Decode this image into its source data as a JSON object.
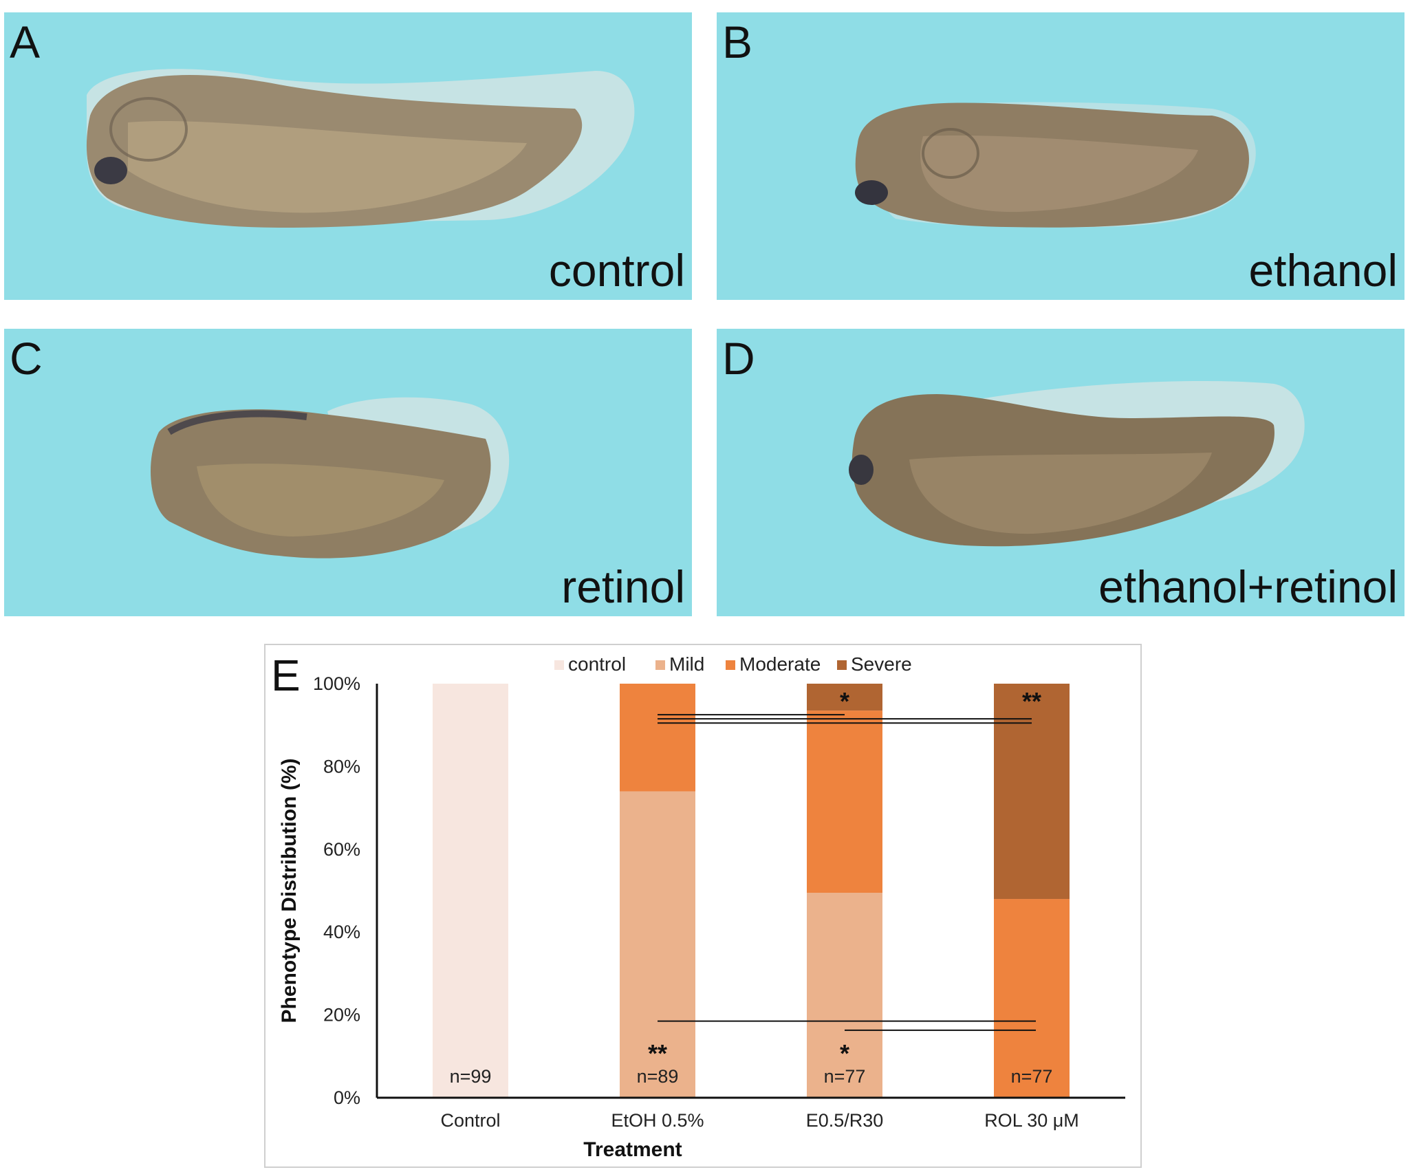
{
  "panels": {
    "a": {
      "letter": "A",
      "caption": "control"
    },
    "b": {
      "letter": "B",
      "caption": "ethanol"
    },
    "c": {
      "letter": "C",
      "caption": "retinol"
    },
    "d": {
      "letter": "D",
      "caption": "ethanol+retinol"
    }
  },
  "colors": {
    "panel_bg": "#8fdde6",
    "embryo_body": "#9a8a70",
    "embryo_fin": "#c9e3e4"
  },
  "chart_data": {
    "type": "bar",
    "stacked": true,
    "panel_letter": "E",
    "categories": [
      "Control",
      "EtOH 0.5%",
      "E0.5/R30",
      "ROL 30 μM"
    ],
    "series": [
      {
        "name": "control",
        "color": "#f7e6df",
        "values": [
          100,
          0,
          0,
          0
        ]
      },
      {
        "name": "Mild",
        "color": "#ebb28c",
        "values": [
          0,
          74,
          49.5,
          0
        ]
      },
      {
        "name": "Moderate",
        "color": "#ee833e",
        "values": [
          0,
          26,
          44,
          48
        ]
      },
      {
        "name": "Severe",
        "color": "#b06532",
        "values": [
          0,
          0,
          6.5,
          52
        ]
      }
    ],
    "n_labels": [
      "n=99",
      "n=89",
      "n=77",
      "n=77"
    ],
    "xlabel": "Treatment",
    "ylabel": "Phenotype Distribution (%)",
    "ylim": [
      0,
      100
    ],
    "yticks": [
      "0%",
      "20%",
      "40%",
      "60%",
      "80%",
      "100%"
    ],
    "legend_position": "top",
    "significance": {
      "top_stars": [
        "",
        "",
        "*",
        "**"
      ],
      "bottom_stars": [
        "",
        "**",
        "*",
        ""
      ]
    }
  }
}
